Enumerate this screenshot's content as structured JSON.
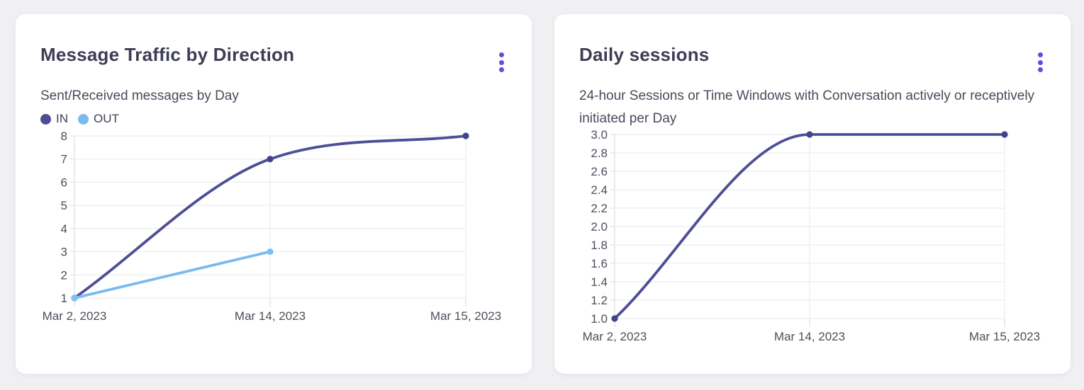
{
  "page": {
    "background_color": "#f0f0f3"
  },
  "accent_color": "#5a4fe0",
  "colors": {
    "grid": "#e9e9ee",
    "axis": "#d9d9e1",
    "title_text": "#3d3d55",
    "subtitle_text": "#4a4a5c",
    "tick_text": "#4e4e5c"
  },
  "cards": [
    {
      "title": "Message Traffic by Direction",
      "subtitle": "Sent/Received messages by Day",
      "menu_icon": "kebab-menu-icon",
      "chart_data": {
        "type": "line",
        "title": "Message Traffic by Direction",
        "xlabel": "",
        "ylabel": "",
        "categories": [
          "Mar 2, 2023",
          "Mar 14, 2023",
          "Mar 15, 2023"
        ],
        "series": [
          {
            "name": "IN",
            "color": "#4c4f95",
            "point_color": "#41448a",
            "values": [
              1,
              7,
              8
            ]
          },
          {
            "name": "OUT",
            "color": "#7abaee",
            "point_color": "#7fc0f0",
            "values": [
              1,
              3,
              null
            ]
          }
        ],
        "ylim": [
          1,
          8
        ],
        "yticks": [
          8,
          7,
          6,
          5,
          4,
          3,
          2,
          1
        ],
        "ytick_labels": [
          "8",
          "7",
          "6",
          "5",
          "4",
          "3",
          "2",
          "1"
        ],
        "legend": [
          "IN",
          "OUT"
        ],
        "legend_position": "top-left",
        "grid": true,
        "curve": "monotone"
      }
    },
    {
      "title": "Daily sessions",
      "subtitle": "24-hour Sessions or Time Windows with Conversation actively or receptively initiated per Day",
      "menu_icon": "kebab-menu-icon",
      "chart_data": {
        "type": "line",
        "title": "Daily sessions",
        "xlabel": "",
        "ylabel": "",
        "categories": [
          "Mar 2, 2023",
          "Mar 14, 2023",
          "Mar 15, 2023"
        ],
        "series": [
          {
            "name": "Daily sessions",
            "color": "#4c4f95",
            "point_color": "#41448a",
            "values": [
              1.0,
              3.0,
              3.0
            ]
          }
        ],
        "ylim": [
          1.0,
          3.0
        ],
        "yticks": [
          3.0,
          2.8,
          2.6,
          2.4,
          2.2,
          2.0,
          1.8,
          1.6,
          1.4,
          1.2,
          1.0
        ],
        "ytick_labels": [
          "3.0",
          "2.8",
          "2.6",
          "2.4",
          "2.2",
          "2.0",
          "1.8",
          "1.6",
          "1.4",
          "1.2",
          "1.0"
        ],
        "legend_position": "none",
        "grid": true,
        "curve": "monotone"
      }
    }
  ]
}
